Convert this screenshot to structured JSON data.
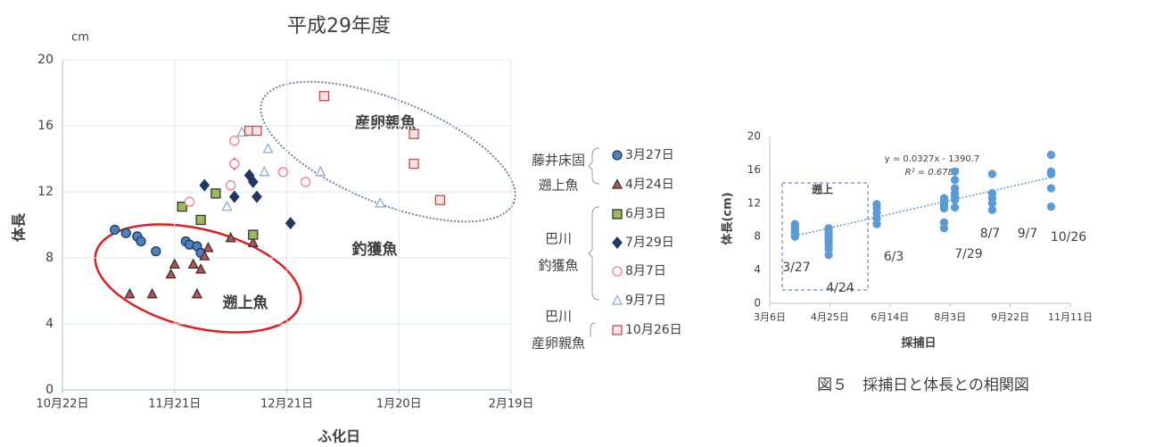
{
  "chart_data": [
    {
      "type": "scatter",
      "title": "平成29年度",
      "y_unit": "cm",
      "ylabel": "体長",
      "xlabel": "ふ化日",
      "xlim": [
        0,
        120
      ],
      "xticks": [
        {
          "value": 0,
          "label": "10月22日"
        },
        {
          "value": 30,
          "label": "11月21日"
        },
        {
          "value": 60,
          "label": "12月21日"
        },
        {
          "value": 90,
          "label": "1月20日"
        },
        {
          "value": 120,
          "label": "2月19日"
        }
      ],
      "ylim": [
        0,
        20
      ],
      "yticks": [
        0,
        4,
        8,
        12,
        16,
        20
      ],
      "grid": true,
      "series": [
        {
          "name": "3月27日",
          "marker": "circle",
          "color": "#4f81bd",
          "edgecolor": "#1f3864",
          "x": [
            14,
            17,
            20,
            21,
            25,
            33,
            34,
            36,
            37
          ],
          "values": [
            9.7,
            9.5,
            9.3,
            9.0,
            8.4,
            9.0,
            8.8,
            8.7,
            8.3
          ]
        },
        {
          "name": "4月24日",
          "marker": "triangle",
          "color": "#c0504d",
          "edgecolor": "#333333",
          "x": [
            18,
            24,
            29,
            30,
            35,
            36,
            37,
            38,
            39,
            45,
            51
          ],
          "values": [
            5.8,
            5.8,
            7.0,
            7.6,
            7.6,
            5.8,
            7.3,
            8.1,
            8.6,
            9.2,
            8.9
          ]
        },
        {
          "name": "6月3日",
          "marker": "square",
          "color": "#9bbb59",
          "edgecolor": "#333333",
          "x": [
            32,
            37,
            41,
            51
          ],
          "values": [
            11.1,
            10.3,
            11.9,
            9.4
          ]
        },
        {
          "name": "7月29日",
          "marker": "diamond",
          "color": "#1f3864",
          "edgecolor": "#1f3864",
          "x": [
            38,
            46,
            46,
            50,
            51,
            52,
            61
          ],
          "values": [
            12.4,
            11.7,
            13.7,
            13.0,
            12.6,
            11.7,
            10.1
          ]
        },
        {
          "name": "8月7日",
          "marker": "circle",
          "color": "#ffffff",
          "edgecolor": "#ff7c80",
          "x": [
            34,
            45,
            46,
            46,
            59,
            65
          ],
          "values": [
            11.4,
            12.4,
            13.7,
            15.1,
            13.2,
            12.6
          ]
        },
        {
          "name": "9月7日",
          "marker": "triangle",
          "color": "#ffffff",
          "edgecolor": "#8faadc",
          "x": [
            44,
            48,
            54,
            55,
            69,
            85
          ],
          "values": [
            11.1,
            15.6,
            13.2,
            14.6,
            13.2,
            11.3
          ]
        },
        {
          "name": "10月26日",
          "marker": "square",
          "color": "#fce4e4",
          "edgecolor": "#c0504d",
          "x": [
            50,
            52,
            70,
            94,
            94,
            101
          ],
          "values": [
            15.7,
            15.7,
            17.8,
            15.5,
            13.7,
            11.5
          ]
        }
      ],
      "legend_groups": [
        [
          "藤井床固",
          "遡上魚"
        ],
        [
          "巴川",
          "釣獲魚"
        ],
        [
          "巴川",
          "産卵親魚"
        ]
      ],
      "annotations": [
        "産卵親魚",
        "釣獲魚",
        "遡上魚"
      ]
    },
    {
      "type": "scatter",
      "ylabel": "体長(cm)",
      "xlabel": "採捕日",
      "xlim": [
        0,
        250
      ],
      "xticks": [
        {
          "value": 0,
          "label": "3月6日"
        },
        {
          "value": 50,
          "label": "4月25日"
        },
        {
          "value": 100,
          "label": "6月14日"
        },
        {
          "value": 150,
          "label": "8月3日"
        },
        {
          "value": 200,
          "label": "9月22日"
        },
        {
          "value": 250,
          "label": "11月11日"
        }
      ],
      "ylim": [
        0,
        20
      ],
      "yticks": [
        0,
        4,
        8,
        12,
        16,
        20
      ],
      "grid": false,
      "series": [
        {
          "marker": "circle",
          "color": "#5b9bd5",
          "edgecolor": "#5b9bd5",
          "x": [
            21,
            21,
            21,
            21,
            21,
            21,
            21,
            49,
            49,
            49,
            49,
            49,
            49,
            49,
            49,
            89,
            89,
            89,
            89,
            89,
            145,
            145,
            145,
            145,
            145,
            145,
            154,
            154,
            154,
            154,
            154,
            154,
            154,
            185,
            185,
            185,
            185,
            185,
            234,
            234,
            234,
            234,
            234
          ],
          "values": [
            9.5,
            9.2,
            9.0,
            8.7,
            8.4,
            8.2,
            8.0,
            9.0,
            8.6,
            8.2,
            7.8,
            7.4,
            7.0,
            6.5,
            5.8,
            11.9,
            11.4,
            10.8,
            10.2,
            9.5,
            12.6,
            12.2,
            11.8,
            11.4,
            9.7,
            9.0,
            15.8,
            14.8,
            13.8,
            13.2,
            12.8,
            12.4,
            11.5,
            15.5,
            13.2,
            12.6,
            12.0,
            11.2,
            17.8,
            15.8,
            15.5,
            13.8,
            11.6
          ]
        }
      ],
      "trendline": {
        "color": "#5b9bd5",
        "x": [
          21,
          234
        ],
        "values": [
          8.1,
          15.1
        ]
      },
      "equation": "y = 0.0327x - 1390.7",
      "r2": "R² = 0.6787",
      "annotations": [
        "遡上",
        "3/27",
        "4/24",
        "6/3",
        "7/29",
        "8/7",
        "9/7",
        "10/26"
      ]
    }
  ],
  "caption": "図５　採捕日と体長との相関図"
}
